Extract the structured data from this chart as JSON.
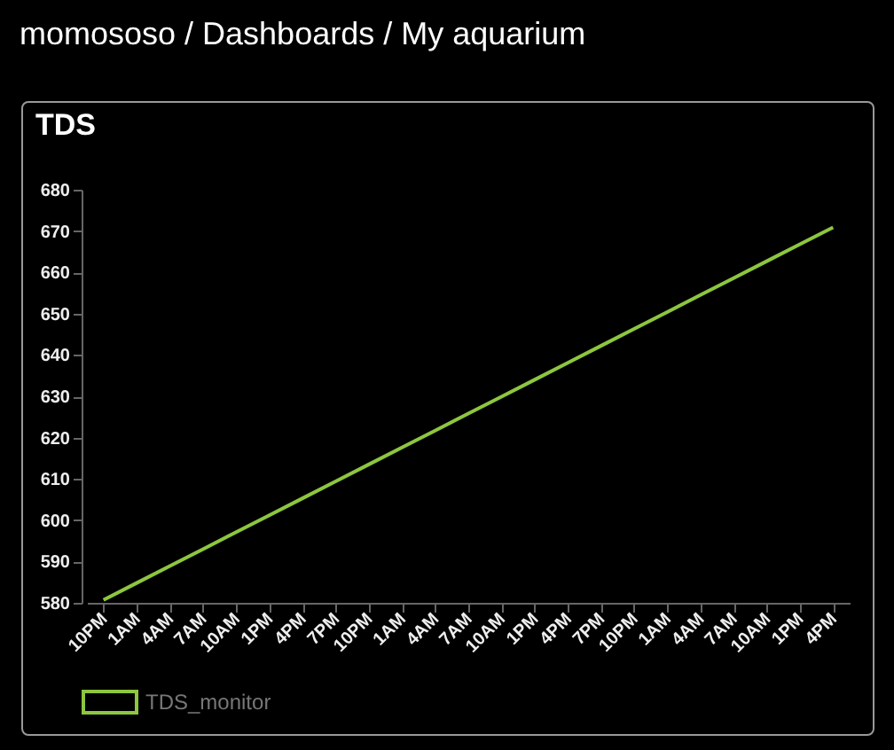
{
  "chart_data": {
    "type": "line",
    "title": "TDS",
    "annotations": [
      "momososo / Dashboards / My aquarium"
    ],
    "categories": [
      "10PM",
      "1AM",
      "4AM",
      "7AM",
      "10AM",
      "1PM",
      "4PM",
      "7PM",
      "10PM",
      "1AM",
      "4AM",
      "7AM",
      "10AM",
      "1PM",
      "4PM",
      "7PM",
      "10PM",
      "1AM",
      "4AM",
      "7AM",
      "10AM",
      "1PM",
      "4PM"
    ],
    "series": [
      {
        "name": "TDS_monitor",
        "color": "#8dc63f",
        "values": [
          580.7,
          584.8,
          588.9,
          593.0,
          597.1,
          601.2,
          605.3,
          609.4,
          613.5,
          617.6,
          621.7,
          625.8,
          629.9,
          634.0,
          638.1,
          642.2,
          646.3,
          650.4,
          654.5,
          658.6,
          662.7,
          666.8,
          670.9
        ]
      }
    ],
    "ylim": [
      580,
      680
    ],
    "yticks": [
      580,
      590,
      600,
      610,
      620,
      630,
      640,
      650,
      660,
      670,
      680
    ],
    "legend": "bottom"
  }
}
